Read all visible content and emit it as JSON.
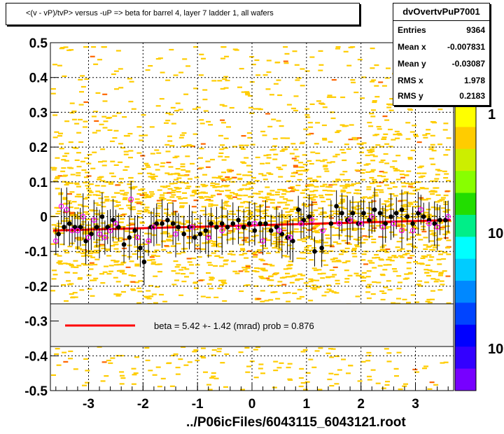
{
  "title": "<(v - vP)/tvP> versus  -uP => beta for barrel 4, layer 7 ladder 1, all wafers",
  "stats": {
    "name": "dvOvertvPuP7001",
    "rows": [
      {
        "label": "Entries",
        "value": "9364"
      },
      {
        "label": "Mean x",
        "value": "-0.007831"
      },
      {
        "label": "Mean y",
        "value": "-0.03087"
      },
      {
        "label": "RMS x",
        "value": "1.978"
      },
      {
        "label": "RMS y",
        "value": "0.2183"
      }
    ]
  },
  "legend_text": "beta =    5.42 +-  1.42 (mrad) prob = 0.876",
  "xlabel": "../P06icFiles/6043115_6043121.root",
  "colorbar": {
    "labels": [
      "1",
      "10",
      "10"
    ]
  },
  "colors": {
    "fit_line": "#ff0000",
    "open_marker": "#ff00ff",
    "filled_marker": "#000000",
    "scatter": "#ffcc00"
  },
  "chart_data": {
    "type": "scatter",
    "xlim": [
      -3.7,
      3.7
    ],
    "ylim": [
      -0.5,
      0.5
    ],
    "xticks": [
      -3,
      -2,
      -1,
      0,
      1,
      2,
      3
    ],
    "yticks": [
      -0.5,
      -0.4,
      -0.3,
      -0.2,
      -0.1,
      0,
      0.1,
      0.2,
      0.3,
      0.4,
      0.5
    ],
    "grid": true,
    "fit_line": {
      "x": [
        -3.65,
        3.65
      ],
      "y": [
        -0.04,
        -0.01
      ]
    },
    "series": [
      {
        "marker": "filled",
        "points": [
          [
            -3.55,
            -0.05
          ],
          [
            -3.45,
            -0.03
          ],
          [
            -3.35,
            -0.02
          ],
          [
            -3.25,
            -0.03
          ],
          [
            -3.15,
            -0.03
          ],
          [
            -3.05,
            -0.07
          ],
          [
            -2.95,
            -0.05
          ],
          [
            -2.85,
            -0.03
          ],
          [
            -2.75,
            0.0
          ],
          [
            -2.65,
            -0.03
          ],
          [
            -2.55,
            -0.01
          ],
          [
            -2.45,
            -0.03
          ],
          [
            -2.35,
            -0.08
          ],
          [
            -2.25,
            -0.06
          ],
          [
            -2.15,
            -0.04
          ],
          [
            -2.05,
            -0.09
          ],
          [
            -1.98,
            -0.13
          ],
          [
            -1.85,
            -0.03
          ],
          [
            -1.75,
            -0.02
          ],
          [
            -1.65,
            -0.02
          ],
          [
            -1.55,
            -0.01
          ],
          [
            -1.45,
            -0.02
          ],
          [
            -1.35,
            -0.03
          ],
          [
            -1.25,
            -0.05
          ],
          [
            -1.15,
            -0.03
          ],
          [
            -1.05,
            -0.06
          ],
          [
            -0.95,
            -0.05
          ],
          [
            -0.85,
            -0.04
          ],
          [
            -0.75,
            -0.02
          ],
          [
            -0.65,
            -0.03
          ],
          [
            -0.55,
            -0.02
          ],
          [
            -0.45,
            -0.03
          ],
          [
            -0.35,
            -0.02
          ],
          [
            -0.25,
            -0.01
          ],
          [
            -0.15,
            -0.03
          ],
          [
            -0.05,
            -0.02
          ],
          [
            0.05,
            -0.04
          ],
          [
            0.15,
            -0.02
          ],
          [
            0.25,
            -0.02
          ],
          [
            0.35,
            -0.04
          ],
          [
            0.45,
            -0.03
          ],
          [
            0.55,
            -0.05
          ],
          [
            0.65,
            -0.06
          ],
          [
            0.75,
            -0.07
          ],
          [
            0.85,
            0.02
          ],
          [
            0.95,
            -0.01
          ],
          [
            1.05,
            0.0
          ],
          [
            1.15,
            -0.1
          ],
          [
            1.28,
            -0.09
          ],
          [
            1.45,
            -0.02
          ],
          [
            1.55,
            0.03
          ],
          [
            1.65,
            0.01
          ],
          [
            1.75,
            -0.01
          ],
          [
            1.85,
            0.01
          ],
          [
            1.95,
            -0.02
          ],
          [
            2.05,
            0.01
          ],
          [
            2.15,
            -0.01
          ],
          [
            2.25,
            0.02
          ],
          [
            2.35,
            0.01
          ],
          [
            2.45,
            -0.02
          ],
          [
            2.55,
            0.0
          ],
          [
            2.65,
            0.01
          ],
          [
            2.75,
            0.02
          ],
          [
            2.85,
            0.0
          ],
          [
            2.95,
            -0.02
          ],
          [
            3.05,
            0.01
          ],
          [
            3.15,
            0.0
          ],
          [
            3.25,
            -0.01
          ],
          [
            3.35,
            -0.02
          ],
          [
            3.45,
            -0.01
          ],
          [
            3.55,
            -0.01
          ]
        ]
      },
      {
        "marker": "open",
        "points": [
          [
            -3.6,
            -0.07
          ],
          [
            -3.5,
            0.03
          ],
          [
            -3.4,
            0.02
          ],
          [
            -3.3,
            -0.04
          ],
          [
            -3.2,
            -0.04
          ],
          [
            -3.1,
            0.0
          ],
          [
            -3.0,
            -0.06
          ],
          [
            -2.9,
            -0.01
          ],
          [
            -2.8,
            -0.05
          ],
          [
            -2.7,
            -0.06
          ],
          [
            -2.6,
            -0.04
          ],
          [
            -2.5,
            -0.02
          ],
          [
            -2.22,
            0.05
          ],
          [
            -2.1,
            -0.06
          ],
          [
            -1.9,
            -0.07
          ],
          [
            -1.8,
            -0.03
          ],
          [
            -1.4,
            -0.05
          ],
          [
            -1.1,
            -0.03
          ],
          [
            -0.8,
            -0.06
          ],
          [
            -0.55,
            -0.04
          ],
          [
            -0.25,
            -0.03
          ],
          [
            0.05,
            -0.02
          ],
          [
            0.2,
            -0.07
          ],
          [
            0.5,
            -0.04
          ],
          [
            0.7,
            -0.06
          ],
          [
            0.9,
            -0.02
          ],
          [
            1.1,
            -0.01
          ],
          [
            1.3,
            -0.04
          ],
          [
            1.6,
            -0.02
          ],
          [
            1.8,
            -0.01
          ],
          [
            2.0,
            -0.02
          ],
          [
            2.2,
            0.0
          ],
          [
            2.4,
            -0.03
          ],
          [
            2.6,
            -0.02
          ],
          [
            2.75,
            -0.04
          ],
          [
            2.95,
            -0.04
          ],
          [
            3.1,
            0.02
          ],
          [
            3.25,
            -0.02
          ],
          [
            3.4,
            -0.03
          ],
          [
            3.6,
            0.0
          ]
        ]
      }
    ]
  }
}
